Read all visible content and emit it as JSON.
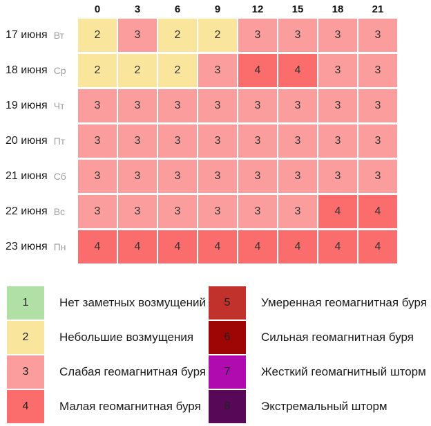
{
  "chart_data": {
    "type": "heatmap",
    "legend_position": "bottom",
    "columns": [
      "0",
      "3",
      "6",
      "9",
      "12",
      "15",
      "18",
      "21"
    ],
    "rows": [
      {
        "date": "17 июня",
        "weekday": "Вт",
        "values": [
          2,
          3,
          2,
          2,
          3,
          3,
          3,
          3
        ]
      },
      {
        "date": "18 июня",
        "weekday": "Ср",
        "values": [
          2,
          2,
          2,
          3,
          4,
          4,
          3,
          3
        ]
      },
      {
        "date": "19 июня",
        "weekday": "Чт",
        "values": [
          3,
          3,
          3,
          3,
          3,
          3,
          3,
          3
        ]
      },
      {
        "date": "20 июня",
        "weekday": "Пт",
        "values": [
          3,
          3,
          3,
          3,
          3,
          3,
          3,
          3
        ]
      },
      {
        "date": "21 июня",
        "weekday": "Сб",
        "values": [
          3,
          3,
          3,
          3,
          3,
          3,
          3,
          3
        ]
      },
      {
        "date": "22 июня",
        "weekday": "Вс",
        "values": [
          3,
          3,
          3,
          3,
          3,
          3,
          4,
          4
        ]
      },
      {
        "date": "23 июня",
        "weekday": "Пн",
        "values": [
          4,
          4,
          4,
          4,
          4,
          4,
          4,
          4
        ]
      }
    ],
    "value_colors": {
      "1": "#b1e0a6",
      "2": "#f9e59c",
      "3": "#fb9d9d",
      "4": "#fb6c6c",
      "5": "#c0322b",
      "6": "#9e0606",
      "7": "#af0baf",
      "8": "#570856"
    },
    "legend": [
      {
        "level": "1",
        "color": "#b1e0a6",
        "label": "Нет заметных возмущений"
      },
      {
        "level": "2",
        "color": "#f9e59c",
        "label": "Небольшие возмущения"
      },
      {
        "level": "3",
        "color": "#fb9d9d",
        "label": "Слабая геомагнитная буря"
      },
      {
        "level": "4",
        "color": "#fb6c6c",
        "label": "Малая геомагнитная буря"
      },
      {
        "level": "5",
        "color": "#c0322b",
        "label": "Умеренная геомагнитная буря"
      },
      {
        "level": "6",
        "color": "#9e0606",
        "label": "Сильная геомагнитная буря"
      },
      {
        "level": "7",
        "color": "#af0baf",
        "label": "Жесткий геомагнитный шторм"
      },
      {
        "level": "8",
        "color": "#570856",
        "label": "Экстремальный шторм"
      }
    ]
  }
}
